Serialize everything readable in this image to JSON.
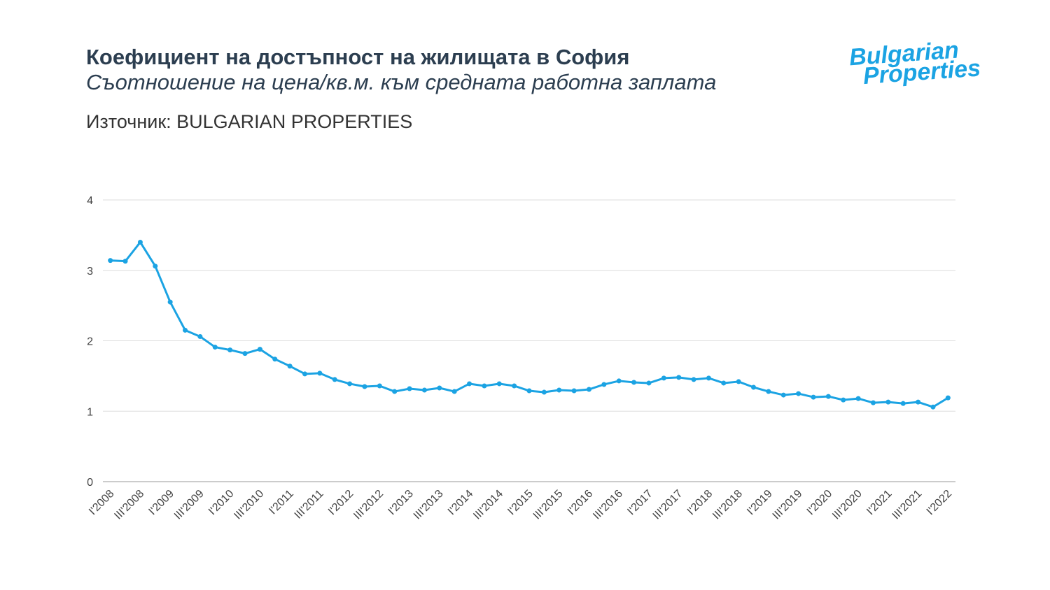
{
  "chart_data": {
    "type": "line",
    "title": "Коефициент на достъпност на жилищата в София",
    "subtitle": "Съотношение на цена/кв.м. към средната работна заплата",
    "source": "Източник: BULGARIAN PROPERTIES",
    "logo": [
      "Bulgarian",
      "Properties"
    ],
    "categories": [
      "I'2008",
      null,
      "III'2008",
      null,
      "I'2009",
      null,
      "III'2009",
      null,
      "I'2010",
      null,
      "III'2010",
      null,
      "I'2011",
      null,
      "III'2011",
      null,
      "I'2012",
      null,
      "III'2012",
      null,
      "I'2013",
      null,
      "III'2013",
      null,
      "I'2014",
      null,
      "III'2014",
      null,
      "I'2015",
      null,
      "III'2015",
      null,
      "I'2016",
      null,
      "III'2016",
      null,
      "I'2017",
      null,
      "III'2017",
      null,
      "I'2018",
      null,
      "III'2018",
      null,
      "I'2019",
      null,
      "III'2019",
      null,
      "I'2020",
      null,
      "III'2020",
      null,
      "I'2021",
      null,
      "III'2021",
      null,
      "I'2022"
    ],
    "values": [
      3.14,
      3.13,
      3.4,
      3.06,
      2.55,
      2.15,
      2.06,
      1.91,
      1.87,
      1.82,
      1.88,
      1.74,
      1.64,
      1.53,
      1.54,
      1.45,
      1.39,
      1.35,
      1.36,
      1.28,
      1.32,
      1.3,
      1.33,
      1.28,
      1.39,
      1.36,
      1.39,
      1.36,
      1.29,
      1.27,
      1.3,
      1.29,
      1.31,
      1.38,
      1.43,
      1.41,
      1.4,
      1.47,
      1.48,
      1.45,
      1.47,
      1.4,
      1.42,
      1.34,
      1.28,
      1.23,
      1.25,
      1.2,
      1.21,
      1.16,
      1.18,
      1.12,
      1.13,
      1.11,
      1.13,
      1.06,
      1.19
    ],
    "color": "#1ba3e3",
    "ylim": [
      0,
      4
    ],
    "yticks": [
      0,
      1,
      2,
      3,
      4
    ],
    "grid": true
  }
}
